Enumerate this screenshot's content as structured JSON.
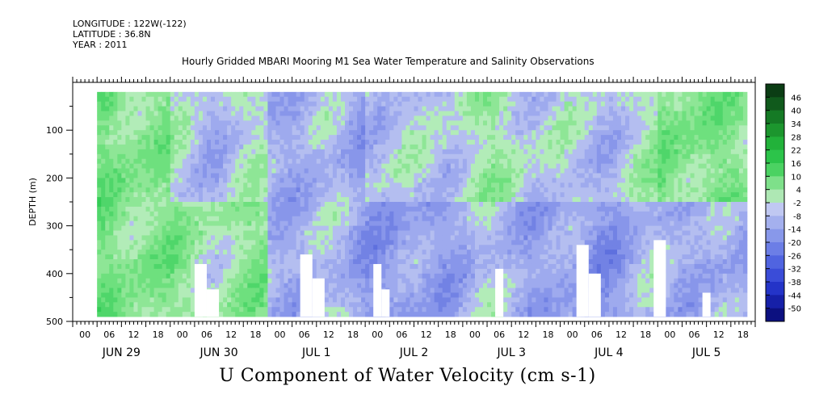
{
  "header": {
    "longitude": "LONGITUDE : 122W(-122)",
    "latitude": "LATITUDE : 36.8N",
    "year": "YEAR : 2011"
  },
  "chart_data": {
    "type": "heatmap",
    "title": "Hourly Gridded MBARI Mooring M1 Sea Water Temperature and Salinity Observations",
    "xlabel": "U Component of Water Velocity (cm s-1)",
    "ylabel": "DEPTH (m)",
    "ylim": [
      500,
      0
    ],
    "y_ticks": [
      100,
      200,
      300,
      400,
      500
    ],
    "x_hour_labels": [
      "00",
      "06",
      "12",
      "18",
      "00",
      "06",
      "12",
      "18",
      "00",
      "06",
      "12",
      "18",
      "00",
      "06",
      "12",
      "18",
      "00",
      "06",
      "12",
      "18",
      "00",
      "06",
      "12",
      "18",
      "00",
      "06",
      "12",
      "18"
    ],
    "x_day_labels": [
      "JUN 29",
      "JUN 30",
      "JUL  1",
      "JUL  2",
      "JUL  3",
      "JUL  4",
      "JUL  5"
    ],
    "data_start_hour": 6,
    "data_end_hour": 166,
    "data_depth_range": [
      20,
      490
    ],
    "colorbar_levels": [
      "46",
      "40",
      "34",
      "28",
      "22",
      "16",
      "10",
      "4",
      "-2",
      "-8",
      "-14",
      "-20",
      "-26",
      "-32",
      "-38",
      "-44",
      "-50"
    ],
    "colorbar_colors": [
      "#0b3d14",
      "#105a1c",
      "#157a25",
      "#1c962e",
      "#22b23a",
      "#2cc44a",
      "#4bd262",
      "#7ee08a",
      "#aee8b4",
      "#c0c8f2",
      "#a4b0ee",
      "#8898ea",
      "#6c7ee6",
      "#5064e0",
      "#3a4cd8",
      "#2434c8",
      "#1620a8",
      "#0c1080"
    ],
    "heatmap_day_pattern": [
      {
        "day": "JUN 29",
        "upper": "green",
        "lower": "green"
      },
      {
        "day": "JUN 30",
        "upper": "mixed",
        "lower": "green"
      },
      {
        "day": "JUL  1",
        "upper": "blue",
        "lower": "blue"
      },
      {
        "day": "JUL  2",
        "upper": "mixed",
        "lower": "blue"
      },
      {
        "day": "JUL  3",
        "upper": "mixed",
        "lower": "blue"
      },
      {
        "day": "JUL  4",
        "upper": "mixed",
        "lower": "blue"
      },
      {
        "day": "JUL  5",
        "upper": "green",
        "lower": "blue"
      }
    ]
  }
}
